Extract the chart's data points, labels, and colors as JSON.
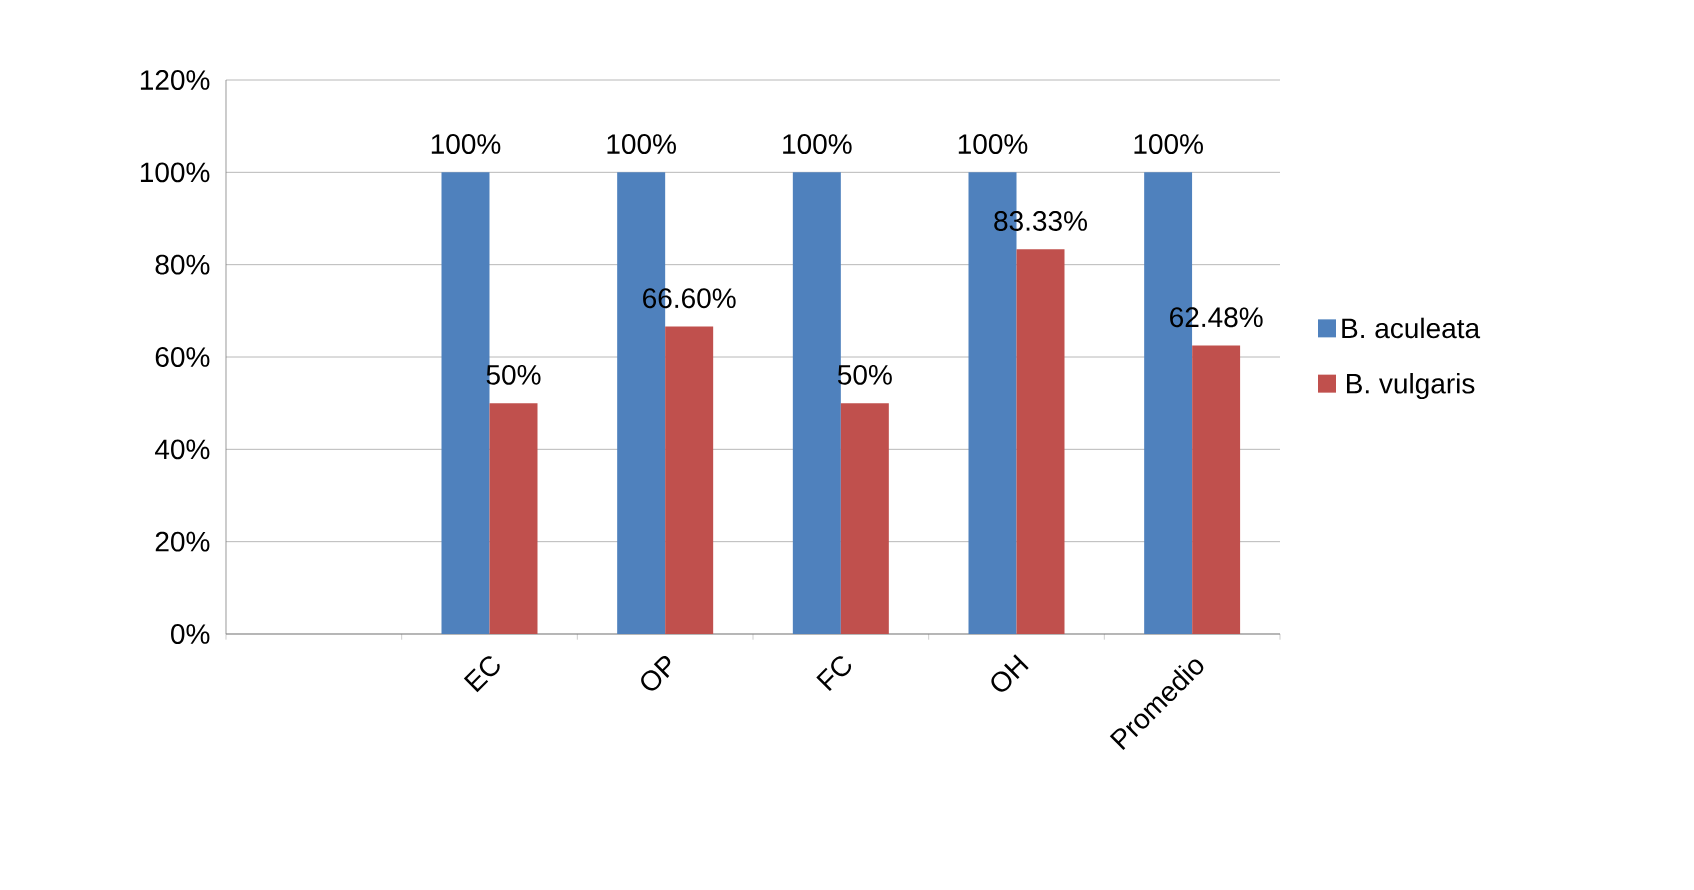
{
  "chart_data": {
    "type": "bar",
    "categories": [
      null,
      "EC",
      "OP",
      "FC",
      "OH",
      "Promedio"
    ],
    "series": [
      {
        "name": "B. aculeata",
        "color": "#4f81bd",
        "values": [
          null,
          100,
          100,
          100,
          100,
          100
        ],
        "value_labels": [
          null,
          "100%",
          "100%",
          "100%",
          "100%",
          "100%"
        ]
      },
      {
        "name": "B. vulgaris",
        "color": "#c0504d",
        "values": [
          null,
          50,
          66.6,
          50,
          83.33,
          62.48
        ],
        "value_labels": [
          null,
          "50%",
          "66.60%",
          "50%",
          "83.33%",
          "62.48%"
        ]
      }
    ],
    "ylim": [
      0,
      120
    ],
    "yticks": [
      {
        "value": 0,
        "label": "0%"
      },
      {
        "value": 20,
        "label": "20%"
      },
      {
        "value": 40,
        "label": "40%"
      },
      {
        "value": 60,
        "label": "60%"
      },
      {
        "value": 80,
        "label": "80%"
      },
      {
        "value": 100,
        "label": "100%"
      },
      {
        "value": 120,
        "label": "120%"
      }
    ],
    "grid": "y",
    "legend": "right"
  }
}
